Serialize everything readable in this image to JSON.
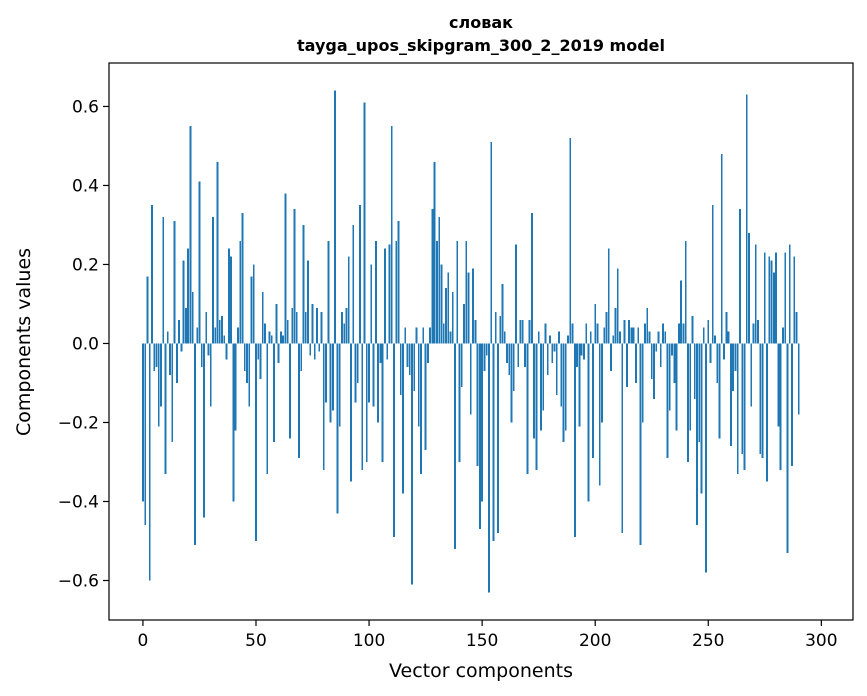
{
  "chart_data": {
    "type": "bar",
    "title_line1": "словак",
    "title_line2": "tayga_upos_skipgram_300_2_2019 model",
    "xlabel": "Vector components",
    "ylabel": "Components values",
    "xlim": [
      -15,
      314
    ],
    "ylim": [
      -0.7,
      0.71
    ],
    "xticks": [
      0,
      50,
      100,
      150,
      200,
      250,
      300
    ],
    "xtick_labels": [
      "0",
      "50",
      "100",
      "150",
      "200",
      "250",
      "300"
    ],
    "yticks": [
      -0.6,
      -0.4,
      -0.2,
      0.0,
      0.2,
      0.4,
      0.6
    ],
    "ytick_labels": [
      "−0.6",
      "−0.4",
      "−0.2",
      "0.0",
      "0.2",
      "0.4",
      "0.6"
    ],
    "bar_color": "#1f77b4",
    "grid": false,
    "values": [
      -0.4,
      -0.46,
      0.17,
      -0.6,
      0.35,
      -0.07,
      -0.06,
      -0.21,
      -0.16,
      0.32,
      -0.33,
      0.03,
      -0.08,
      -0.25,
      0.31,
      -0.1,
      0.06,
      -0.02,
      0.21,
      0.09,
      0.24,
      0.55,
      0.13,
      -0.51,
      0.04,
      0.41,
      -0.06,
      -0.44,
      0.08,
      -0.03,
      -0.16,
      0.32,
      0.04,
      0.46,
      0.06,
      0.07,
      0.02,
      -0.04,
      0.24,
      0.22,
      -0.4,
      -0.22,
      0.04,
      0.26,
      0.33,
      -0.07,
      -0.1,
      -0.16,
      0.17,
      0.2,
      -0.5,
      -0.04,
      -0.09,
      0.13,
      0.05,
      -0.33,
      0.03,
      0.02,
      -0.25,
      0.1,
      -0.05,
      0.03,
      0.02,
      0.38,
      0.06,
      -0.24,
      0.09,
      0.34,
      0.08,
      -0.29,
      -0.07,
      0.3,
      0.08,
      0.21,
      -0.03,
      0.1,
      -0.04,
      0.09,
      -0.02,
      0.08,
      -0.32,
      -0.15,
      0.26,
      -0.2,
      -0.17,
      0.64,
      -0.43,
      -0.21,
      0.08,
      0.05,
      0.09,
      0.22,
      -0.35,
      0.3,
      -0.15,
      -0.1,
      0.35,
      -0.32,
      0.61,
      -0.3,
      -0.15,
      0.2,
      -0.16,
      0.26,
      -0.2,
      -0.05,
      -0.3,
      0.24,
      -0.04,
      0.25,
      0.55,
      -0.49,
      0.26,
      0.31,
      -0.13,
      -0.38,
      0.04,
      -0.06,
      -0.08,
      -0.61,
      -0.12,
      0.04,
      -0.21,
      -0.33,
      0.04,
      -0.27,
      -0.05,
      0.04,
      0.34,
      0.46,
      0.26,
      0.32,
      0.2,
      0.05,
      0.14,
      0.18,
      0.03,
      0.13,
      -0.52,
      0.26,
      -0.3,
      -0.11,
      0.1,
      0.26,
      0.18,
      -0.18,
      0.19,
      0.06,
      -0.31,
      -0.47,
      -0.4,
      -0.07,
      -0.03,
      -0.63,
      0.51,
      -0.5,
      0.08,
      -0.48,
      0.07,
      0.15,
      0.03,
      -0.05,
      -0.08,
      -0.2,
      -0.12,
      0.25,
      -0.06,
      0.06,
      0.06,
      -0.06,
      -0.33,
      0.06,
      0.33,
      -0.24,
      -0.32,
      0.03,
      -0.22,
      -0.17,
      0.05,
      -0.08,
      0.02,
      -0.05,
      -0.02,
      -0.13,
      0.03,
      -0.16,
      -0.25,
      -0.22,
      0.02,
      0.52,
      0.05,
      -0.49,
      -0.06,
      -0.21,
      -0.03,
      -0.04,
      0.05,
      -0.4,
      0.03,
      -0.29,
      0.1,
      0.05,
      -0.36,
      -0.2,
      0.04,
      0.08,
      0.24,
      -0.07,
      0.02,
      0.09,
      0.19,
      0.03,
      -0.48,
      0.06,
      -0.11,
      0.06,
      0.04,
      0.04,
      -0.1,
      0.04,
      -0.51,
      -0.2,
      0.05,
      0.09,
      0.03,
      -0.09,
      -0.14,
      -0.02,
      0.03,
      -0.06,
      0.05,
      0.03,
      -0.29,
      -0.17,
      -0.03,
      -0.1,
      -0.22,
      0.05,
      0.16,
      0.05,
      0.26,
      -0.3,
      -0.22,
      0.07,
      -0.14,
      -0.46,
      -0.25,
      -0.38,
      0.04,
      -0.58,
      0.06,
      -0.05,
      0.35,
      0.02,
      -0.1,
      -0.24,
      0.48,
      -0.04,
      0.08,
      0.03,
      -0.26,
      -0.12,
      -0.07,
      -0.33,
      0.34,
      -0.28,
      -0.32,
      0.63,
      0.28,
      -0.16,
      0.05,
      0.25,
      0.06,
      -0.28,
      -0.29,
      0.23,
      -0.35,
      0.22,
      0.21,
      0.18,
      0.23,
      -0.21,
      -0.32,
      0.04,
      0.23,
      -0.53,
      0.25,
      -0.31,
      0.22,
      0.08,
      -0.18
    ]
  }
}
